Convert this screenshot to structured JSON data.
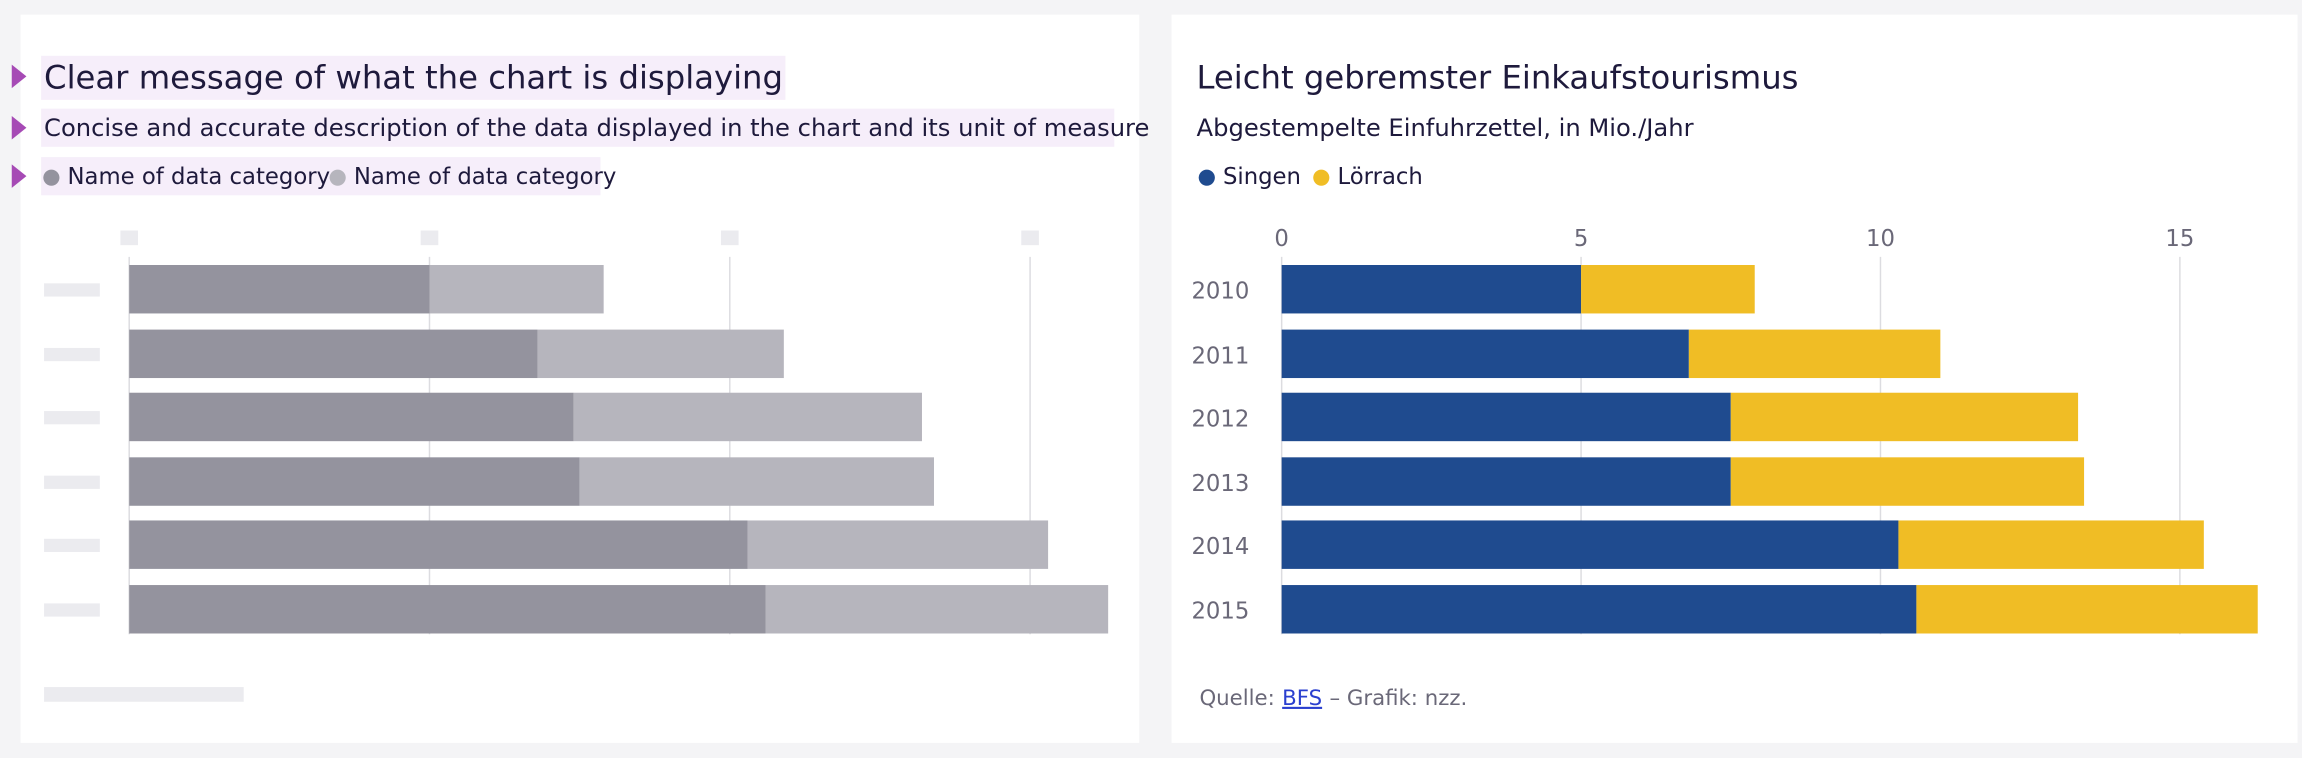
{
  "chart_data": [
    {
      "type": "bar",
      "stacked": true,
      "title": "Clear message of what the chart is displaying",
      "subtitle": "Concise and accurate description of the data displayed in the chart and its unit of measure",
      "categories": [
        null,
        null,
        null,
        null,
        null,
        null
      ],
      "series": [
        {
          "name": "Name of data category",
          "color": "#94939e",
          "values": [
            5.0,
            6.8,
            7.4,
            7.5,
            10.3,
            10.6
          ]
        },
        {
          "name": "Name of data category",
          "color": "#b6b5bd",
          "values": [
            2.9,
            4.1,
            5.8,
            5.9,
            5.0,
            5.7
          ]
        }
      ],
      "xlim": [
        0,
        16.5
      ],
      "xticks": [
        0,
        5,
        10,
        15
      ],
      "grid": true
    },
    {
      "type": "bar",
      "stacked": true,
      "title": "Leicht gebremster Einkaufstourismus",
      "subtitle": "Abgestempelte Einfuhrzettel, in Mio./Jahr",
      "categories": [
        "2010",
        "2011",
        "2012",
        "2013",
        "2014",
        "2015"
      ],
      "series": [
        {
          "name": "Singen",
          "color": "#1f4b8f",
          "values": [
            5.0,
            6.8,
            7.5,
            7.5,
            10.3,
            10.6
          ]
        },
        {
          "name": "Lörrach",
          "color": "#f0bd25",
          "values": [
            2.9,
            4.2,
            5.8,
            5.9,
            5.1,
            5.7
          ]
        }
      ],
      "xlim": [
        0,
        16.5
      ],
      "xticks": [
        0,
        5,
        10,
        15
      ],
      "grid": true,
      "source_label": "Quelle:",
      "source_link": "BFS",
      "credit": "– Grafik: nzz."
    }
  ]
}
